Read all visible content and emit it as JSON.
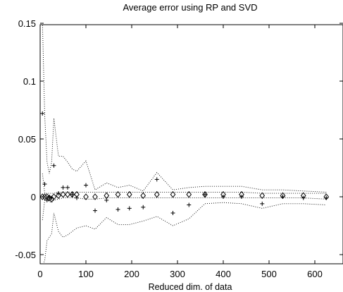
{
  "chart_data": {
    "type": "scatter",
    "title": "Average error using RP and SVD",
    "xlabel": "Reduced dim. of data",
    "ylabel": "",
    "xlim": [
      0,
      630
    ],
    "ylim": [
      -0.06,
      0.15
    ],
    "xticks": [
      0,
      100,
      200,
      300,
      400,
      500,
      600
    ],
    "xtick_labels": [
      "0",
      "100",
      "200",
      "300",
      "400",
      "500",
      "600"
    ],
    "yticks": [
      -0.05,
      0,
      0.05,
      0.1,
      0.15
    ],
    "ytick_labels": [
      "-0.05",
      "0",
      "0.05",
      "0.1",
      "0.15"
    ],
    "grid": false,
    "legend": "none",
    "series": [
      {
        "marker": "plus",
        "x": [
          5,
          10,
          15,
          20,
          25,
          30,
          40,
          50,
          60,
          70,
          80,
          100,
          120,
          145,
          170,
          195,
          225,
          255,
          290,
          325,
          360,
          400,
          440,
          485,
          530,
          575,
          625
        ],
        "y": [
          0.072,
          0.011,
          -0.003,
          0.0,
          -0.001,
          0.027,
          0.003,
          0.008,
          0.008,
          0.002,
          -0.001,
          0.01,
          -0.012,
          -0.003,
          -0.011,
          -0.01,
          -0.009,
          0.015,
          -0.014,
          -0.007,
          0.002,
          0.0,
          0.0,
          -0.006,
          0.0,
          -0.001,
          -0.001
        ]
      },
      {
        "marker": "diamond",
        "x": [
          5,
          10,
          15,
          20,
          25,
          30,
          40,
          50,
          60,
          70,
          80,
          100,
          120,
          145,
          170,
          195,
          225,
          255,
          290,
          325,
          360,
          400,
          440,
          485,
          530,
          575,
          625
        ],
        "y": [
          0.0,
          0.0,
          0.0,
          -0.001,
          -0.002,
          0.0,
          0.001,
          0.002,
          0.002,
          0.002,
          0.002,
          0.0,
          0.0,
          0.001,
          0.002,
          0.002,
          0.001,
          0.002,
          0.002,
          0.002,
          0.002,
          0.002,
          0.002,
          0.001,
          0.001,
          0.001,
          0.0
        ]
      },
      {
        "marker": "dotted-line",
        "x": [
          5,
          10,
          15,
          20,
          25,
          30,
          40,
          50,
          60,
          70,
          80,
          100,
          120,
          145,
          170,
          195,
          225,
          255,
          290,
          325,
          360,
          400,
          440,
          485,
          530,
          575,
          625
        ],
        "y": [
          0.15,
          0.07,
          0.03,
          0.02,
          0.03,
          0.068,
          0.035,
          0.035,
          0.03,
          0.024,
          0.022,
          0.031,
          0.006,
          0.012,
          0.008,
          0.01,
          0.005,
          0.021,
          0.006,
          0.008,
          0.009,
          0.009,
          0.009,
          0.006,
          0.006,
          0.005,
          0.004
        ]
      },
      {
        "marker": "dotted-line",
        "x": [
          5,
          10,
          15,
          20,
          25,
          30,
          40,
          50,
          60,
          70,
          80,
          100,
          120,
          145,
          170,
          195,
          225,
          255,
          290,
          325,
          360,
          400,
          440,
          485,
          530,
          575,
          625
        ],
        "y": [
          -0.06,
          -0.055,
          -0.038,
          -0.035,
          -0.032,
          -0.014,
          -0.03,
          -0.035,
          -0.033,
          -0.03,
          -0.027,
          -0.025,
          -0.028,
          -0.018,
          -0.024,
          -0.024,
          -0.021,
          -0.017,
          -0.025,
          -0.019,
          -0.006,
          -0.005,
          -0.006,
          -0.01,
          -0.006,
          -0.006,
          -0.007
        ]
      },
      {
        "marker": "dotted-line",
        "x": [
          5,
          10,
          15,
          20,
          25,
          30,
          40,
          50,
          60,
          70,
          80,
          100,
          120,
          145,
          170,
          195,
          225,
          255,
          290,
          325,
          360,
          400,
          440,
          485,
          530,
          575,
          625
        ],
        "y": [
          0.02,
          0.003,
          0.003,
          0.003,
          0.003,
          0.003,
          0.004,
          0.004,
          0.004,
          0.004,
          0.004,
          0.004,
          0.004,
          0.004,
          0.004,
          0.004,
          0.004,
          0.004,
          0.004,
          0.004,
          0.004,
          0.004,
          0.004,
          0.003,
          0.003,
          0.003,
          0.003
        ]
      },
      {
        "marker": "dotted-line",
        "x": [
          5,
          10,
          15,
          20,
          25,
          30,
          40,
          50,
          60,
          70,
          80,
          100,
          120,
          145,
          170,
          195,
          225,
          255,
          290,
          325,
          360,
          400,
          440,
          485,
          530,
          575,
          625
        ],
        "y": [
          -0.02,
          -0.003,
          -0.003,
          -0.004,
          -0.005,
          -0.003,
          -0.002,
          -0.001,
          -0.001,
          -0.001,
          -0.001,
          -0.002,
          -0.002,
          -0.001,
          -0.001,
          -0.001,
          -0.001,
          -0.001,
          -0.001,
          -0.001,
          -0.001,
          -0.001,
          -0.001,
          -0.001,
          -0.001,
          -0.001,
          -0.002
        ]
      }
    ]
  }
}
